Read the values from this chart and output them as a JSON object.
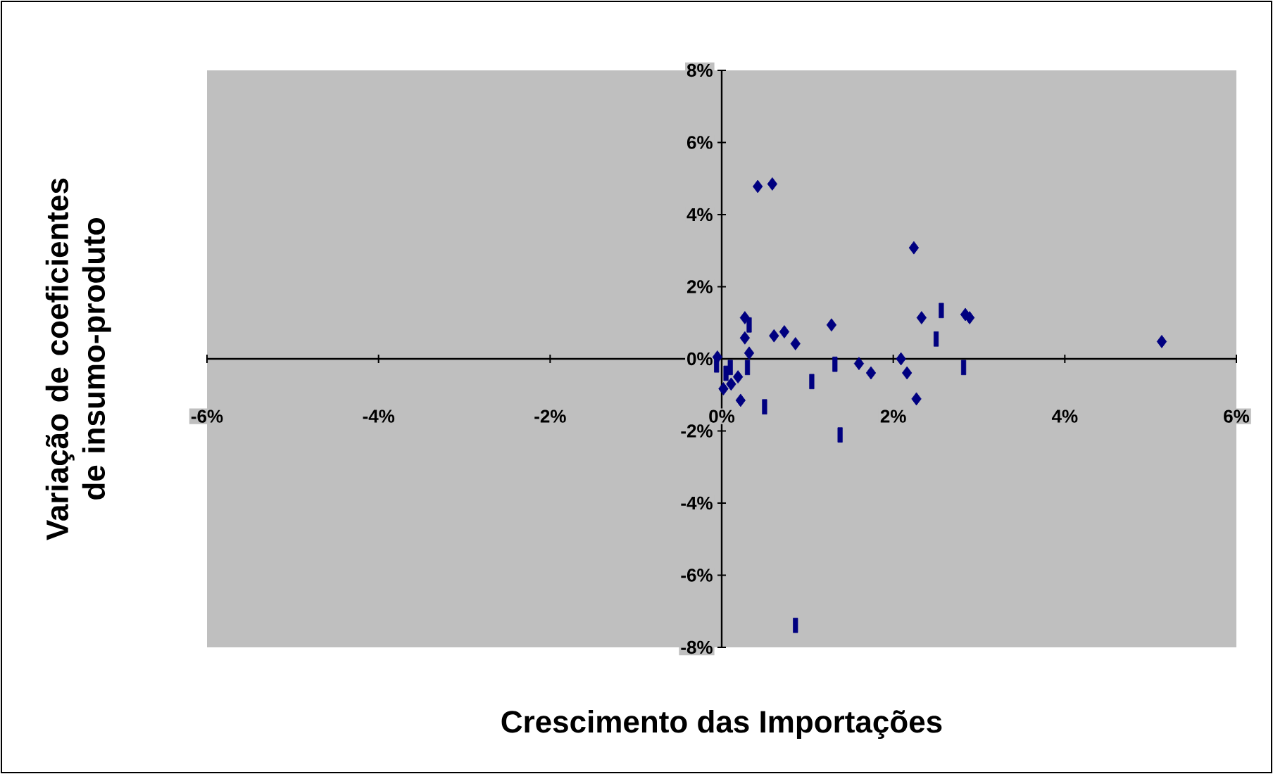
{
  "chart_data": {
    "type": "scatter",
    "xlabel": "Crescimento das Importações",
    "ylabel": "Variação de coeficientes de insumo-produto",
    "xlim": [
      -6,
      6
    ],
    "ylim": [
      -8,
      8
    ],
    "xticks": [
      {
        "value": -6,
        "label": "-6%"
      },
      {
        "value": -4,
        "label": "-4%"
      },
      {
        "value": -2,
        "label": "-2%"
      },
      {
        "value": 0,
        "label": "0%"
      },
      {
        "value": 2,
        "label": "2%"
      },
      {
        "value": 4,
        "label": "4%"
      },
      {
        "value": 6,
        "label": "6%"
      }
    ],
    "yticks": [
      {
        "value": -8,
        "label": "-8%"
      },
      {
        "value": -6,
        "label": "-6%"
      },
      {
        "value": -4,
        "label": "-4%"
      },
      {
        "value": -2,
        "label": "-2%"
      },
      {
        "value": 0,
        "label": "0%"
      },
      {
        "value": 2,
        "label": "2%"
      },
      {
        "value": 4,
        "label": "4%"
      },
      {
        "value": 6,
        "label": "6%"
      },
      {
        "value": 8,
        "label": "8%"
      }
    ],
    "legend": false,
    "series": [
      {
        "color": "#000080",
        "marker": "diamond",
        "x": [
          0.42,
          0.59,
          2.24,
          0.27,
          0.27,
          0.32,
          -0.05,
          0.61,
          0.73,
          0.86,
          1.28,
          1.6,
          1.74,
          2.09,
          2.16,
          2.27,
          2.33,
          2.84,
          2.89,
          0.22,
          0.11,
          0.19,
          0.02,
          5.13
        ],
        "values": [
          4.78,
          4.85,
          3.08,
          1.14,
          0.58,
          0.16,
          0.05,
          0.64,
          0.75,
          0.42,
          0.94,
          -0.13,
          -0.39,
          0.0,
          -0.39,
          -1.11,
          1.14,
          1.23,
          1.14,
          -1.15,
          -0.7,
          -0.5,
          -0.83,
          0.48
        ]
      },
      {
        "color": "#000080",
        "marker": "square",
        "x": [
          -0.06,
          0.1,
          0.32,
          0.3,
          0.5,
          1.05,
          1.32,
          1.38,
          2.5,
          2.56,
          2.82,
          0.86,
          0.05
        ],
        "values": [
          -0.17,
          -0.24,
          0.94,
          -0.24,
          -1.33,
          -0.63,
          -0.15,
          -2.11,
          0.55,
          1.34,
          -0.24,
          -7.39,
          -0.4
        ]
      }
    ]
  }
}
